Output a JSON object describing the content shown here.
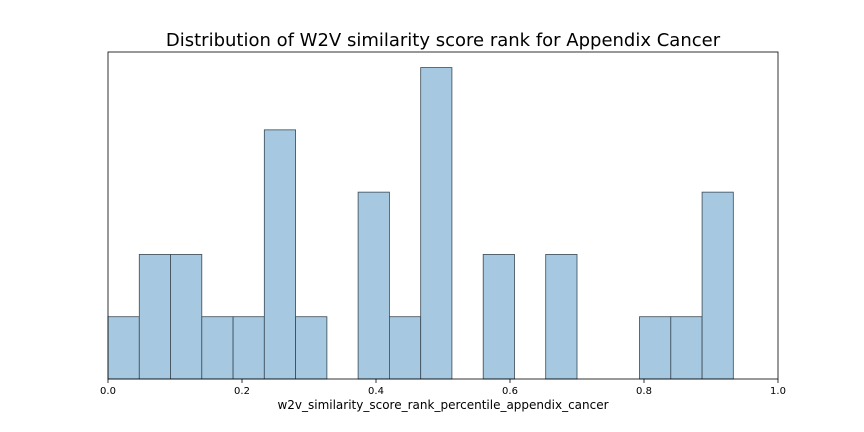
{
  "chart_data": {
    "type": "bar",
    "title": "Distribution of W2V similarity score rank for Appendix Cancer",
    "xlabel": "w2v_similarity_score_rank_percentile_appendix_cancer",
    "ylabel": "",
    "xlim": [
      0.0,
      1.0
    ],
    "ylim": [
      0,
      5.25
    ],
    "x_ticks": [
      "0.0",
      "0.2",
      "0.4",
      "0.6",
      "0.8",
      "1.0"
    ],
    "grid": false,
    "bar_color": "#a6c8e0",
    "bar_edge_color": "#3a4a56",
    "bins": [
      {
        "x0": 0.0,
        "x1": 0.0467,
        "value": 1
      },
      {
        "x0": 0.0467,
        "x1": 0.0933,
        "value": 2
      },
      {
        "x0": 0.0933,
        "x1": 0.14,
        "value": 2
      },
      {
        "x0": 0.14,
        "x1": 0.1867,
        "value": 1
      },
      {
        "x0": 0.1867,
        "x1": 0.2333,
        "value": 1
      },
      {
        "x0": 0.2333,
        "x1": 0.28,
        "value": 4
      },
      {
        "x0": 0.28,
        "x1": 0.3267,
        "value": 1
      },
      {
        "x0": 0.3267,
        "x1": 0.3733,
        "value": 0
      },
      {
        "x0": 0.3733,
        "x1": 0.42,
        "value": 3
      },
      {
        "x0": 0.42,
        "x1": 0.4667,
        "value": 1
      },
      {
        "x0": 0.4667,
        "x1": 0.5133,
        "value": 5
      },
      {
        "x0": 0.5133,
        "x1": 0.56,
        "value": 0
      },
      {
        "x0": 0.56,
        "x1": 0.6067,
        "value": 2
      },
      {
        "x0": 0.6067,
        "x1": 0.6533,
        "value": 0
      },
      {
        "x0": 0.6533,
        "x1": 0.7,
        "value": 2
      },
      {
        "x0": 0.7,
        "x1": 0.7467,
        "value": 0
      },
      {
        "x0": 0.7467,
        "x1": 0.7933,
        "value": 0
      },
      {
        "x0": 0.7933,
        "x1": 0.84,
        "value": 1
      },
      {
        "x0": 0.84,
        "x1": 0.8867,
        "value": 1
      },
      {
        "x0": 0.8867,
        "x1": 0.9333,
        "value": 3
      }
    ]
  }
}
